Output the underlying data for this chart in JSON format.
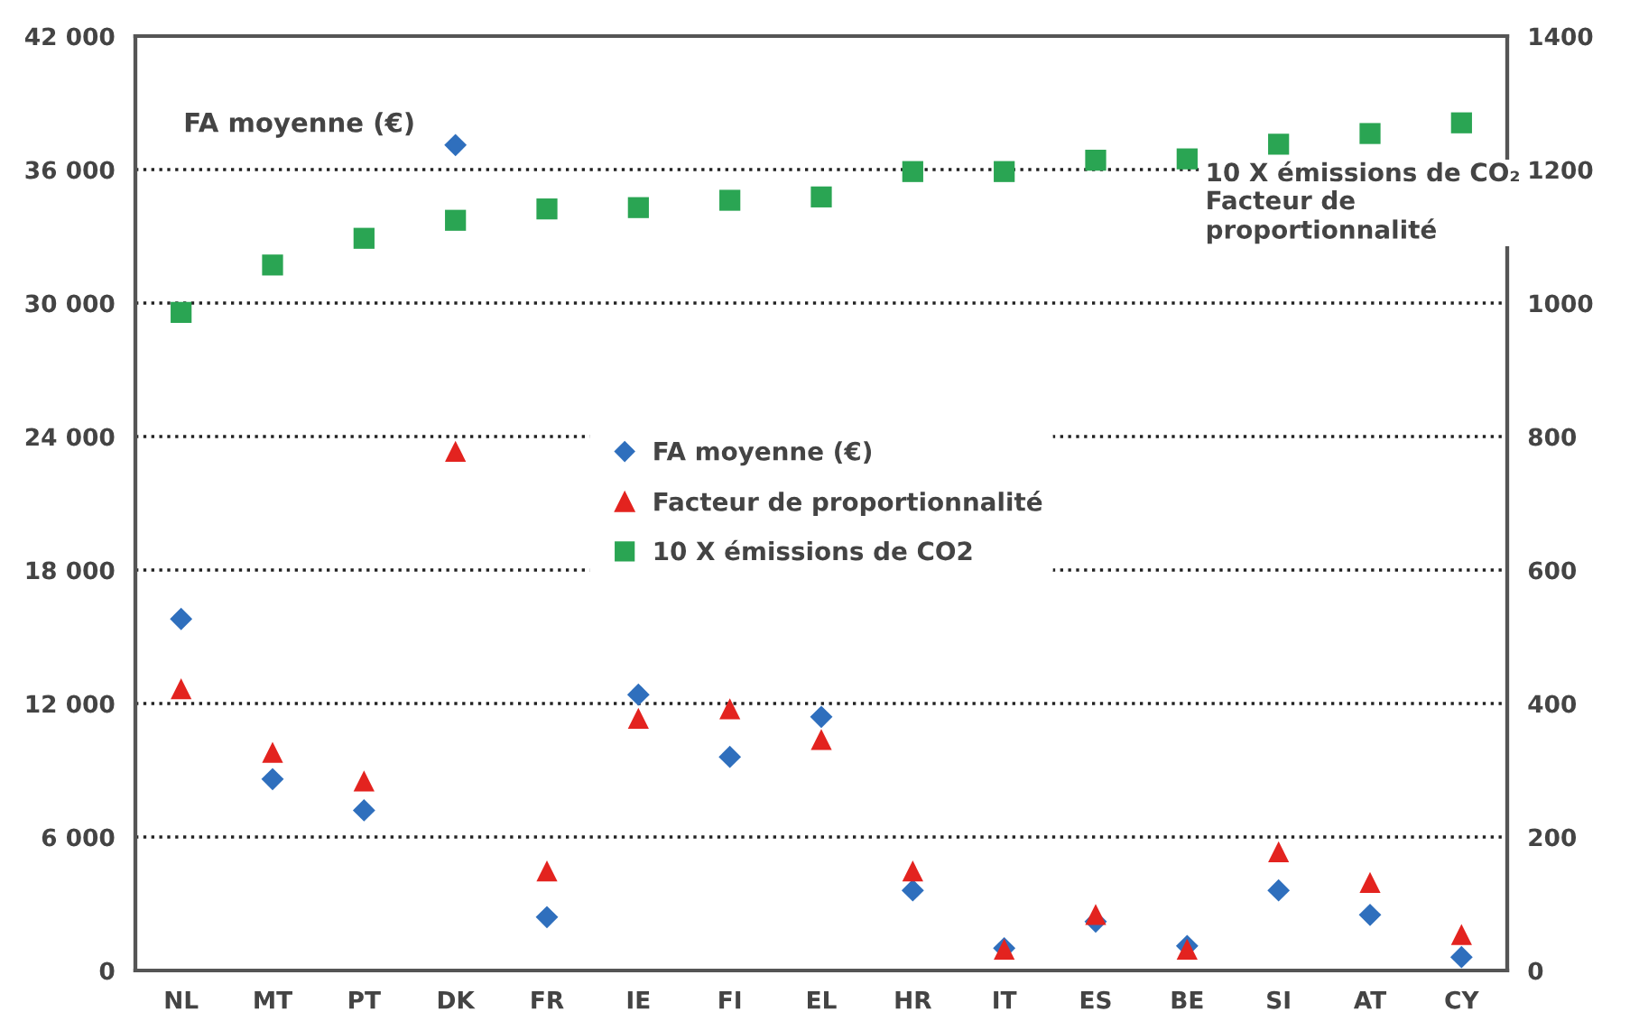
{
  "chart_data": {
    "type": "scatter",
    "ylabel": "FA moyenne (€)",
    "y2label": "10 X émissions de CO₂\nFacteur de\nproportionnalité",
    "categories": [
      "NL",
      "MT",
      "PT",
      "DK",
      "FR",
      "IE",
      "FI",
      "EL",
      "HR",
      "IT",
      "ES",
      "BE",
      "SI",
      "AT",
      "CY"
    ],
    "series": [
      {
        "name": "FA moyenne (€)",
        "color": "#2f6fbd",
        "marker": "diamond",
        "values": [
          15800,
          8600,
          7200,
          37100,
          2400,
          12400,
          9600,
          11400,
          3600,
          1000,
          2200,
          1100,
          3600,
          2500,
          600
        ]
      },
      {
        "name": "Facteur de proportionnalité",
        "color": "#e3231f",
        "marker": "triangle",
        "axis": "y2",
        "values": [
          422,
          327,
          284,
          778,
          149,
          378,
          392,
          346,
          149,
          32,
          84,
          32,
          178,
          132,
          54
        ]
      },
      {
        "name": "10 X émissions de CO2",
        "color": "#2aa553",
        "marker": "square",
        "axis": "y2",
        "values": [
          986,
          1057,
          1097,
          1124,
          1141,
          1143,
          1154,
          1159,
          1197,
          1197,
          1214,
          1216,
          1238,
          1254,
          1270
        ]
      }
    ],
    "ylim": [
      0,
      42000
    ],
    "yticks": [
      0,
      {
        "value": 6000,
        "label": "6 000"
      },
      {
        "value": 12000,
        "label": "12 000"
      },
      {
        "value": 18000,
        "label": "18 000"
      },
      {
        "value": 24000,
        "label": "24 000"
      },
      {
        "value": 30000,
        "label": "30 000"
      },
      {
        "value": 36000,
        "label": "36 000"
      },
      {
        "value": 42000,
        "label": "42 000"
      }
    ],
    "y2lim": [
      0,
      1400
    ],
    "y2ticks": [
      0,
      200,
      400,
      600,
      800,
      1000,
      1200,
      1400
    ],
    "grid": "y",
    "line_style": "dotted",
    "legend": "center"
  }
}
